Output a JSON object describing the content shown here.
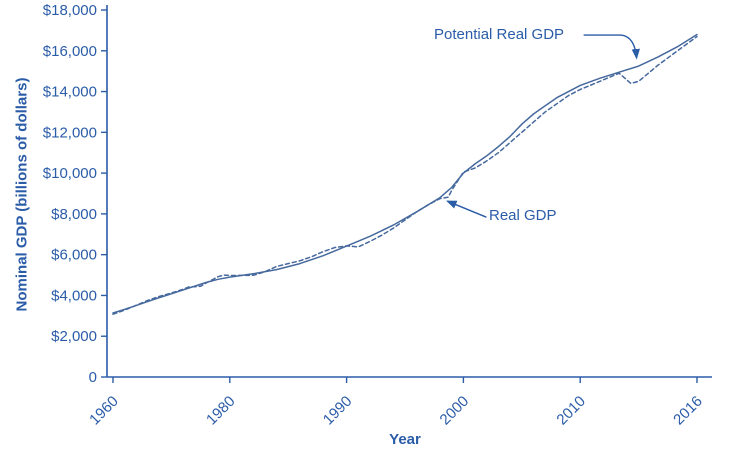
{
  "colors": {
    "axis": "#2b5ca8",
    "text": "#2b5ca8",
    "line": "#46699e"
  },
  "chart_data": {
    "type": "line",
    "title": "",
    "xlabel": "Year",
    "ylabel": "Nominal GDP (billions of dollars)",
    "ylim": [
      0,
      18000
    ],
    "grid": false,
    "legend": "none",
    "y_ticks": [
      {
        "value": 0,
        "label": "0"
      },
      {
        "value": 2000,
        "label": "$2,000"
      },
      {
        "value": 4000,
        "label": "$4,000"
      },
      {
        "value": 6000,
        "label": "$6,000"
      },
      {
        "value": 8000,
        "label": "$8,000"
      },
      {
        "value": 10000,
        "label": "$10,000"
      },
      {
        "value": 12000,
        "label": "$12,000"
      },
      {
        "value": 14000,
        "label": "$14,000"
      },
      {
        "value": 16000,
        "label": "$16,000"
      },
      {
        "value": 18000,
        "label": "$18,000"
      }
    ],
    "x_ticks": [
      {
        "year": 1960,
        "label": "1960"
      },
      {
        "year": 1980,
        "label": "1980"
      },
      {
        "year": 1990,
        "label": "1990"
      },
      {
        "year": 2000,
        "label": "2000"
      },
      {
        "year": 2010,
        "label": "2010"
      },
      {
        "year": 2016,
        "label": "2016"
      }
    ],
    "series": [
      {
        "name": "Potential Real GDP",
        "style": "solid",
        "points": [
          {
            "x": 1960,
            "y": 3140
          },
          {
            "x": 1962,
            "y": 3320
          },
          {
            "x": 1964,
            "y": 3510
          },
          {
            "x": 1966,
            "y": 3710
          },
          {
            "x": 1968,
            "y": 3900
          },
          {
            "x": 1970,
            "y": 4080
          },
          {
            "x": 1972,
            "y": 4270
          },
          {
            "x": 1974,
            "y": 4460
          },
          {
            "x": 1976,
            "y": 4640
          },
          {
            "x": 1978,
            "y": 4790
          },
          {
            "x": 1980,
            "y": 4900
          },
          {
            "x": 1982,
            "y": 5060
          },
          {
            "x": 1984,
            "y": 5270
          },
          {
            "x": 1986,
            "y": 5560
          },
          {
            "x": 1988,
            "y": 5950
          },
          {
            "x": 1990,
            "y": 6420
          },
          {
            "x": 1992,
            "y": 6900
          },
          {
            "x": 1994,
            "y": 7450
          },
          {
            "x": 1996,
            "y": 8100
          },
          {
            "x": 1998,
            "y": 8800
          },
          {
            "x": 1999,
            "y": 9300
          },
          {
            "x": 2000,
            "y": 10000
          },
          {
            "x": 2001,
            "y": 10450
          },
          {
            "x": 2002,
            "y": 10850
          },
          {
            "x": 2003,
            "y": 11300
          },
          {
            "x": 2004,
            "y": 11800
          },
          {
            "x": 2005,
            "y": 12400
          },
          {
            "x": 2006,
            "y": 12900
          },
          {
            "x": 2007,
            "y": 13300
          },
          {
            "x": 2008,
            "y": 13700
          },
          {
            "x": 2009,
            "y": 14000
          },
          {
            "x": 2010,
            "y": 14300
          },
          {
            "x": 2011,
            "y": 14650
          },
          {
            "x": 2012,
            "y": 14950
          },
          {
            "x": 2013,
            "y": 15250
          },
          {
            "x": 2014,
            "y": 15700
          },
          {
            "x": 2015,
            "y": 16200
          },
          {
            "x": 2016,
            "y": 16800
          }
        ]
      },
      {
        "name": "Real GDP",
        "style": "dashed",
        "points": [
          {
            "x": 1960,
            "y": 3080
          },
          {
            "x": 1962,
            "y": 3280
          },
          {
            "x": 1964,
            "y": 3520
          },
          {
            "x": 1966,
            "y": 3760
          },
          {
            "x": 1968,
            "y": 3960
          },
          {
            "x": 1970,
            "y": 4120
          },
          {
            "x": 1972,
            "y": 4300
          },
          {
            "x": 1973,
            "y": 4420
          },
          {
            "x": 1974,
            "y": 4430
          },
          {
            "x": 1975,
            "y": 4450
          },
          {
            "x": 1976,
            "y": 4620
          },
          {
            "x": 1978,
            "y": 4920
          },
          {
            "x": 1979,
            "y": 5000
          },
          {
            "x": 1980,
            "y": 4980
          },
          {
            "x": 1982,
            "y": 4990
          },
          {
            "x": 1983,
            "y": 5160
          },
          {
            "x": 1984,
            "y": 5420
          },
          {
            "x": 1985,
            "y": 5560
          },
          {
            "x": 1986,
            "y": 5700
          },
          {
            "x": 1987,
            "y": 5900
          },
          {
            "x": 1988,
            "y": 6150
          },
          {
            "x": 1989,
            "y": 6350
          },
          {
            "x": 1990,
            "y": 6430
          },
          {
            "x": 1991,
            "y": 6380
          },
          {
            "x": 1992,
            "y": 6650
          },
          {
            "x": 1993,
            "y": 6950
          },
          {
            "x": 1994,
            "y": 7300
          },
          {
            "x": 1995,
            "y": 7700
          },
          {
            "x": 1996,
            "y": 8100
          },
          {
            "x": 1997,
            "y": 8450
          },
          {
            "x": 1998,
            "y": 8750
          },
          {
            "x": 1998.7,
            "y": 8820
          },
          {
            "x": 1999,
            "y": 9150
          },
          {
            "x": 2000,
            "y": 10050
          },
          {
            "x": 2001,
            "y": 10250
          },
          {
            "x": 2002,
            "y": 10600
          },
          {
            "x": 2003,
            "y": 11000
          },
          {
            "x": 2004,
            "y": 11500
          },
          {
            "x": 2005,
            "y": 12000
          },
          {
            "x": 2006,
            "y": 12500
          },
          {
            "x": 2007,
            "y": 13000
          },
          {
            "x": 2008,
            "y": 13400
          },
          {
            "x": 2009,
            "y": 13800
          },
          {
            "x": 2010,
            "y": 14100
          },
          {
            "x": 2011,
            "y": 14500
          },
          {
            "x": 2012,
            "y": 14900
          },
          {
            "x": 2012.6,
            "y": 14400
          },
          {
            "x": 2013,
            "y": 14500
          },
          {
            "x": 2014,
            "y": 15300
          },
          {
            "x": 2015,
            "y": 16000
          },
          {
            "x": 2016,
            "y": 16700
          }
        ]
      }
    ],
    "annotations": [
      {
        "text": "Potential Real GDP",
        "series": 0,
        "year": 2013,
        "value": 15250
      },
      {
        "text": "Real GDP",
        "series": 1,
        "year": 1998.2,
        "value": 8820
      }
    ]
  }
}
